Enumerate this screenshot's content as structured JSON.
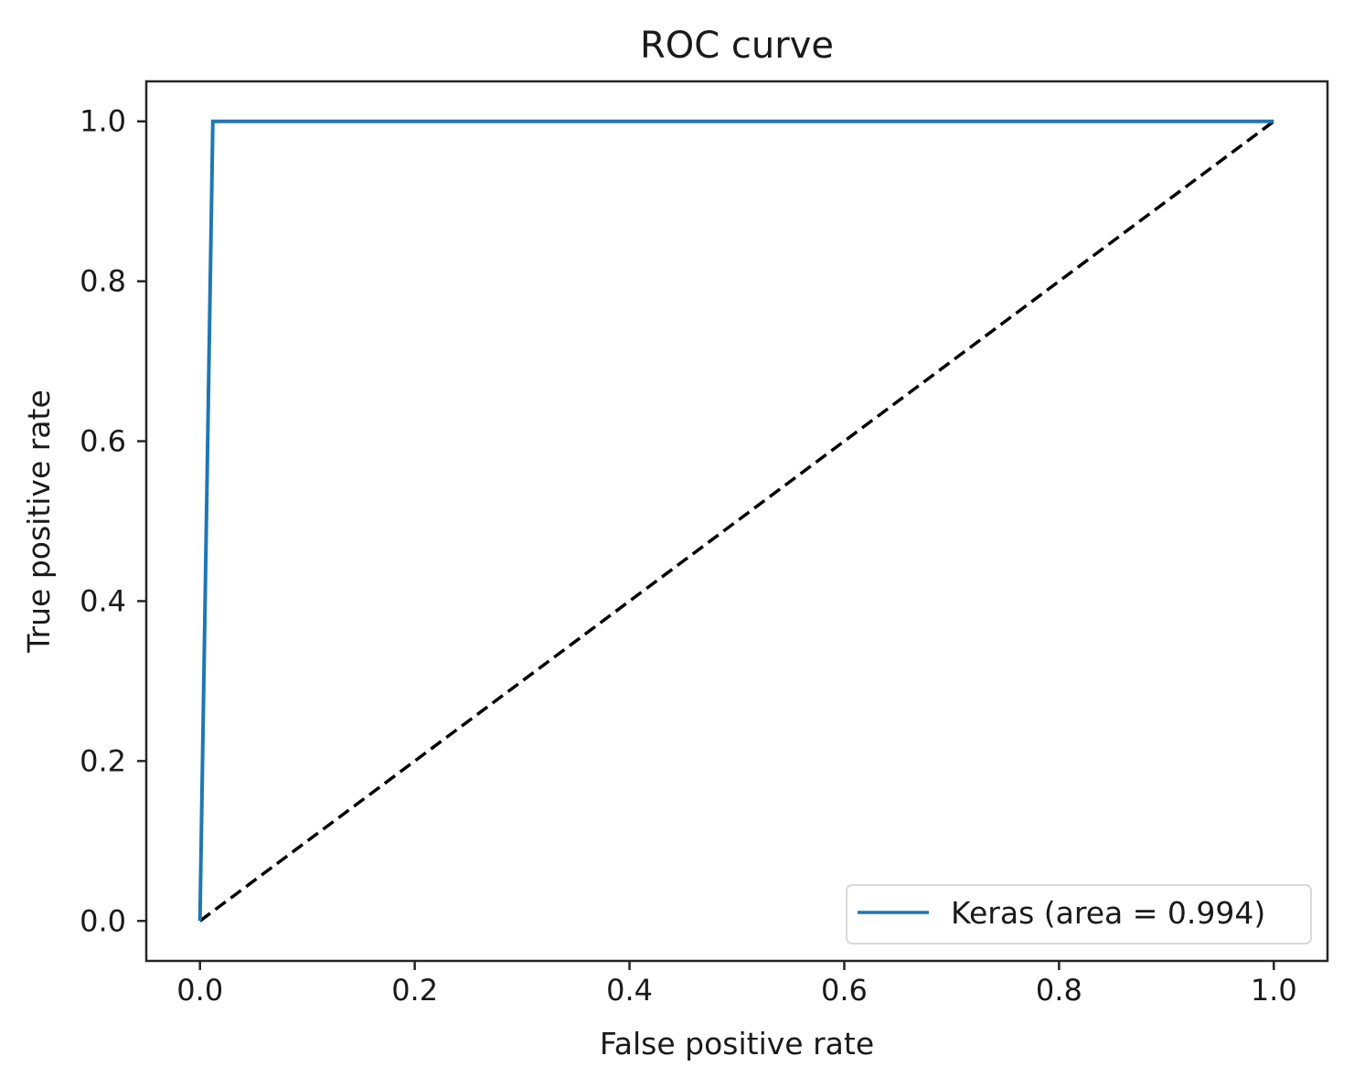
{
  "chart_data": {
    "type": "line",
    "title": "ROC curve",
    "xlabel": "False positive rate",
    "ylabel": "True positive rate",
    "xlim": [
      -0.05,
      1.05
    ],
    "ylim": [
      -0.05,
      1.05
    ],
    "x_ticks": [
      0.0,
      0.2,
      0.4,
      0.6,
      0.8,
      1.0
    ],
    "x_tick_labels": [
      "0.0",
      "0.2",
      "0.4",
      "0.6",
      "0.8",
      "1.0"
    ],
    "y_ticks": [
      0.0,
      0.2,
      0.4,
      0.6,
      0.8,
      1.0
    ],
    "y_tick_labels": [
      "0.0",
      "0.2",
      "0.4",
      "0.6",
      "0.8",
      "1.0"
    ],
    "grid": false,
    "legend_position": "lower-right",
    "series": [
      {
        "name": "Keras (area = 0.994)",
        "style": "solid",
        "color": "#1f77b4",
        "x": [
          0.0,
          0.012,
          1.0
        ],
        "y": [
          0.0,
          1.0,
          1.0
        ]
      },
      {
        "style": "dashed",
        "color": "#000000",
        "x": [
          0.0,
          1.0
        ],
        "y": [
          0.0,
          1.0
        ]
      }
    ]
  }
}
